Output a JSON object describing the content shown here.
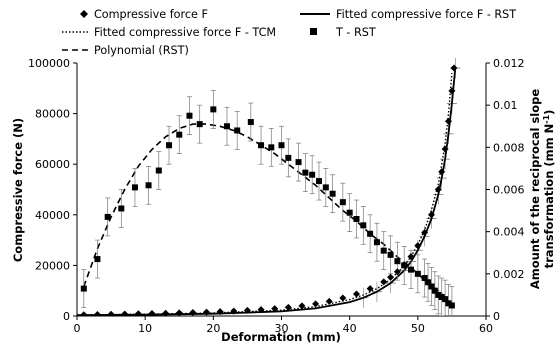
{
  "chart_data": {
    "type": "scatter",
    "title": "",
    "xlabel": "Deformation (mm)",
    "ylabel": "Compressive force (N)",
    "y2label_line1": "Amount of the reciprocal slope",
    "y2label_line2": "transformation (mm N",
    "y2label_sup": "-1",
    "y2label_close": ")",
    "xlim": [
      0,
      60
    ],
    "ylim": [
      0,
      100000
    ],
    "y2lim": [
      0,
      0.012
    ],
    "x_ticks": [
      0,
      10,
      20,
      30,
      40,
      50,
      60
    ],
    "y_ticks": [
      0,
      20000,
      40000,
      60000,
      80000,
      100000
    ],
    "y2_ticks": [
      "0",
      "0.002",
      "0.004",
      "0.006",
      "0.008",
      "0.01",
      "0.012"
    ],
    "legend_position": "top",
    "legend": {
      "compressive_force": "Compressive force F",
      "fitted_rst": "Fitted compressive force F - RST",
      "fitted_tcm": "Fitted compressive force F - TCM",
      "t_rst": "T - RST",
      "polynomial": "Polynomial (RST)"
    },
    "series": [
      {
        "name": "Compressive force F",
        "axis": "left",
        "marker": "diamond",
        "x": [
          1,
          3,
          5,
          7,
          9,
          11,
          13,
          15,
          17,
          19,
          21,
          23,
          25,
          27,
          29,
          31,
          33,
          35,
          37,
          39,
          41,
          43,
          45,
          46,
          47,
          48,
          49,
          50,
          51,
          52,
          53,
          53.5,
          54,
          54.5,
          55,
          55.3
        ],
        "y": [
          500,
          600,
          700,
          800,
          900,
          1000,
          1100,
          1250,
          1400,
          1550,
          1750,
          1950,
          2200,
          2500,
          2900,
          3400,
          4000,
          4800,
          5800,
          7100,
          8700,
          10800,
          13500,
          15300,
          17500,
          20200,
          23500,
          27800,
          33000,
          40000,
          50000,
          57000,
          66000,
          77000,
          89000,
          98000
        ]
      },
      {
        "name": "T - RST",
        "axis": "right",
        "marker": "square",
        "x": [
          1,
          3,
          4.5,
          6.5,
          8.5,
          10.5,
          12,
          13.5,
          15,
          16.5,
          18,
          20,
          22,
          23.5,
          25.5,
          27,
          28.5,
          30,
          31,
          32.5,
          33.5,
          34.5,
          35.5,
          36.5,
          37.5,
          39,
          40,
          41,
          42,
          43,
          44,
          45,
          46,
          47,
          48,
          49,
          50,
          51,
          51.5,
          52,
          52.5,
          53,
          53.5,
          54,
          54.5,
          55
        ],
        "y": [
          0.0013,
          0.0027,
          0.0047,
          0.0051,
          0.0061,
          0.0062,
          0.0069,
          0.0081,
          0.0086,
          0.0095,
          0.0091,
          0.0098,
          0.009,
          0.0088,
          0.0092,
          0.0081,
          0.008,
          0.0081,
          0.0075,
          0.0073,
          0.0068,
          0.0067,
          0.0064,
          0.0061,
          0.0058,
          0.0054,
          0.0049,
          0.0046,
          0.0043,
          0.0039,
          0.0035,
          0.0031,
          0.0029,
          0.0026,
          0.0024,
          0.0022,
          0.002,
          0.0018,
          0.0016,
          0.0014,
          0.0012,
          0.001,
          0.0009,
          0.0008,
          0.0006,
          0.0005
        ],
        "error": 0.0009
      },
      {
        "name": "Fitted compressive force F - RST",
        "axis": "left",
        "style": "solid",
        "x": [
          0,
          10,
          20,
          30,
          35,
          40,
          42,
          44,
          46,
          48,
          49,
          50,
          51,
          52,
          53,
          53.5,
          54,
          54.5,
          55,
          55.5
        ],
        "y": [
          300,
          500,
          900,
          1800,
          3000,
          5500,
          7200,
          9600,
          13000,
          18000,
          21500,
          26000,
          31500,
          38500,
          48000,
          54500,
          62000,
          72000,
          84000,
          98000
        ],
        "error": 4000
      },
      {
        "name": "Fitted compressive force F - TCM",
        "axis": "left",
        "style": "dotted",
        "x": [
          0,
          10,
          20,
          30,
          35,
          40,
          42,
          44,
          46,
          48,
          49,
          50,
          51,
          52,
          53,
          54,
          54.5,
          55
        ],
        "y": [
          400,
          700,
          1200,
          2300,
          3700,
          6500,
          8300,
          10800,
          14500,
          19800,
          23500,
          28200,
          34000,
          42000,
          52000,
          68000,
          80000,
          96000
        ]
      },
      {
        "name": "Polynomial (RST)",
        "axis": "right",
        "style": "dashed",
        "x": [
          1,
          3,
          5,
          7,
          9,
          11,
          13,
          15,
          17,
          19,
          21,
          23,
          25,
          27,
          29,
          31,
          33,
          35,
          37,
          39,
          41,
          43,
          45,
          47,
          49,
          51,
          53,
          55
        ],
        "y": [
          0.0014,
          0.0032,
          0.0047,
          0.006,
          0.0071,
          0.0079,
          0.0085,
          0.0089,
          0.0091,
          0.0091,
          0.009,
          0.0088,
          0.0085,
          0.0081,
          0.0077,
          0.0072,
          0.0067,
          0.0062,
          0.0056,
          0.005,
          0.0045,
          0.0039,
          0.0034,
          0.0028,
          0.0023,
          0.0017,
          0.0012,
          0.0006
        ]
      }
    ]
  }
}
